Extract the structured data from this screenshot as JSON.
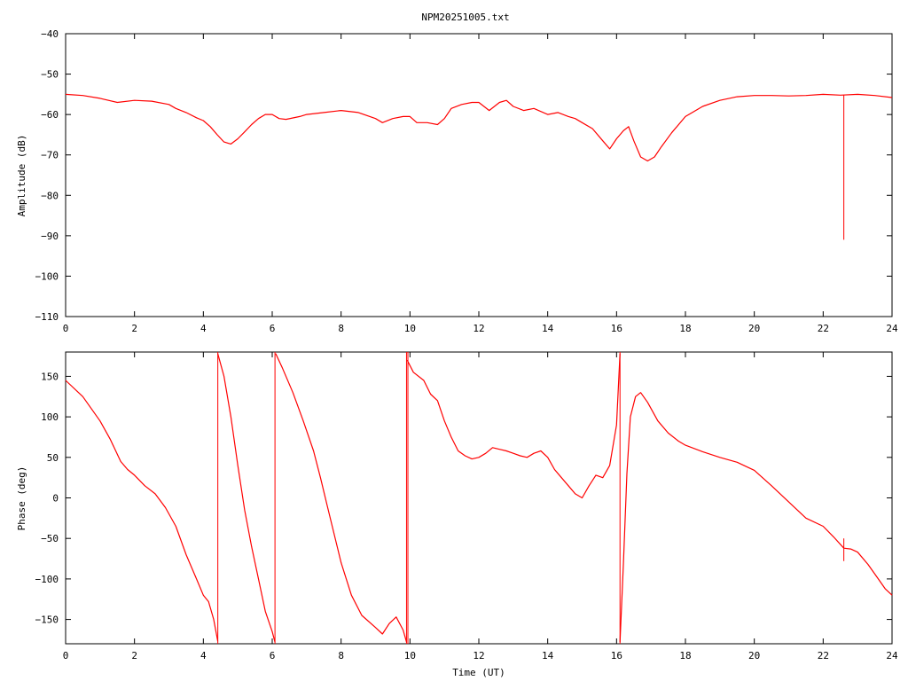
{
  "title": "NPM20251005.txt",
  "colors": {
    "trace": "#ff0000",
    "axes": "#000000",
    "background": "#ffffff"
  },
  "chart_data": [
    {
      "type": "line",
      "title": "NPM20251005.txt",
      "xlabel": "",
      "ylabel": "Amplitude (dB)",
      "xlim": [
        0,
        24
      ],
      "ylim": [
        -110,
        -40
      ],
      "xticks": [
        0,
        2,
        4,
        6,
        8,
        10,
        12,
        14,
        16,
        18,
        20,
        22,
        24
      ],
      "yticks": [
        -110,
        -100,
        -90,
        -80,
        -70,
        -60,
        -50,
        -40
      ],
      "xtick_labels": [
        "0",
        "2",
        "4",
        "6",
        "8",
        "10",
        "12",
        "14",
        "16",
        "18",
        "20",
        "22",
        "24"
      ],
      "ytick_labels": [
        "−110",
        "−100",
        "−90",
        "−80",
        "−70",
        "−60",
        "−50",
        "−40"
      ],
      "grid": false,
      "series": [
        {
          "color": "#ff0000",
          "x": [
            0,
            0.5,
            1.0,
            1.5,
            2.0,
            2.5,
            3.0,
            3.2,
            3.5,
            3.8,
            4.0,
            4.2,
            4.4,
            4.6,
            4.8,
            5.0,
            5.2,
            5.4,
            5.6,
            5.8,
            6.0,
            6.2,
            6.4,
            6.8,
            7.0,
            7.5,
            8.0,
            8.5,
            9.0,
            9.2,
            9.5,
            9.8,
            10.0,
            10.2,
            10.5,
            10.8,
            11.0,
            11.2,
            11.5,
            11.8,
            12.0,
            12.3,
            12.6,
            12.8,
            13.0,
            13.3,
            13.6,
            14.0,
            14.3,
            14.6,
            14.8,
            15.0,
            15.3,
            15.6,
            15.8,
            16.0,
            16.2,
            16.35,
            16.5,
            16.7,
            16.9,
            17.1,
            17.3,
            17.6,
            18.0,
            18.5,
            19.0,
            19.5,
            20.0,
            20.5,
            21.0,
            21.5,
            22.0,
            22.5,
            23.0,
            23.5,
            24.0
          ],
          "y": [
            -55,
            -55.3,
            -56,
            -57,
            -56.5,
            -56.7,
            -57.5,
            -58.5,
            -59.5,
            -60.8,
            -61.5,
            -63,
            -65,
            -66.8,
            -67.3,
            -66,
            -64.3,
            -62.5,
            -61,
            -60,
            -60,
            -61,
            -61.2,
            -60.5,
            -60,
            -59.5,
            -59,
            -59.5,
            -61,
            -62,
            -61,
            -60.5,
            -60.5,
            -62,
            -62,
            -62.5,
            -61,
            -58.5,
            -57.5,
            -57,
            -57,
            -59,
            -57,
            -56.5,
            -58,
            -59,
            -58.5,
            -60,
            -59.5,
            -60.5,
            -61,
            -62,
            -63.5,
            -66.5,
            -68.5,
            -66,
            -64,
            -63,
            -66.5,
            -70.5,
            -71.5,
            -70.5,
            -68,
            -64.5,
            -60.5,
            -58,
            -56.5,
            -55.6,
            -55.3,
            -55.3,
            -55.4,
            -55.3,
            -55,
            -55.2,
            -55,
            -55.3,
            -55.8
          ]
        }
      ],
      "spikes": [
        {
          "x": 22.6,
          "y0": -55.2,
          "y1": -91
        }
      ]
    },
    {
      "type": "line",
      "title": "",
      "xlabel": "Time (UT)",
      "ylabel": "Phase (deg)",
      "xlim": [
        0,
        24
      ],
      "ylim": [
        -180,
        180
      ],
      "xticks": [
        0,
        2,
        4,
        6,
        8,
        10,
        12,
        14,
        16,
        18,
        20,
        22,
        24
      ],
      "yticks": [
        -150,
        -100,
        -50,
        0,
        50,
        100,
        150
      ],
      "xtick_labels": [
        "0",
        "2",
        "4",
        "6",
        "8",
        "10",
        "12",
        "14",
        "16",
        "18",
        "20",
        "22",
        "24"
      ],
      "ytick_labels": [
        "−150",
        "−100",
        "−50",
        "0",
        "50",
        "100",
        "150"
      ],
      "grid": false,
      "series": [
        {
          "color": "#ff0000",
          "x": [
            0,
            0.5,
            1.0,
            1.3,
            1.6,
            1.8,
            2.0,
            2.3,
            2.6,
            2.9,
            3.2,
            3.5,
            3.8,
            4.0,
            4.15,
            4.3,
            4.42
          ],
          "y": [
            145,
            125,
            95,
            72,
            45,
            35,
            28,
            15,
            5,
            -12,
            -35,
            -70,
            -100,
            -120,
            -128,
            -150,
            -177
          ]
        },
        {
          "color": "#ff0000",
          "x": [
            4.42,
            4.6,
            4.8,
            5.0,
            5.2,
            5.4,
            5.6,
            5.8,
            6.0,
            6.08
          ],
          "y": [
            178,
            150,
            100,
            40,
            -15,
            -60,
            -100,
            -140,
            -165,
            -178
          ]
        },
        {
          "color": "#ff0000",
          "x": [
            6.1,
            6.3,
            6.6,
            6.9,
            7.2,
            7.4,
            7.6,
            7.8,
            8.0,
            8.3,
            8.6,
            9.0,
            9.2,
            9.4,
            9.6,
            9.8,
            9.9
          ],
          "y": [
            178,
            160,
            130,
            95,
            58,
            25,
            -10,
            -45,
            -80,
            -120,
            -145,
            -160,
            -168,
            -155,
            -147,
            -163,
            -178
          ]
        },
        {
          "color": "#ff0000",
          "x": [
            9.92,
            10.1,
            10.4,
            10.6,
            10.8,
            11.0,
            11.2,
            11.4,
            11.6,
            11.8,
            12.0,
            12.2,
            12.4,
            12.6,
            12.8,
            13.0,
            13.2,
            13.4,
            13.6,
            13.8,
            14.0,
            14.2,
            14.4,
            14.6,
            14.8,
            15.0,
            15.2,
            15.4,
            15.6,
            15.8,
            16.0,
            16.1
          ],
          "y": [
            170,
            155,
            145,
            128,
            120,
            95,
            75,
            58,
            52,
            48,
            50,
            55,
            62,
            60,
            58,
            55,
            52,
            50,
            55,
            58,
            50,
            35,
            25,
            15,
            5,
            0,
            15,
            28,
            25,
            40,
            90,
            178
          ]
        },
        {
          "color": "#ff0000",
          "x": [
            16.1,
            16.2,
            16.3,
            16.4,
            16.55,
            16.7,
            16.9,
            17.2,
            17.5,
            17.8,
            18.0,
            18.5,
            19.0,
            19.5,
            20.0,
            20.5,
            21.0,
            21.5,
            22.0,
            22.3,
            22.6,
            22.8,
            23.0,
            23.3,
            23.6,
            23.8,
            24.0
          ],
          "y": [
            -178,
            -80,
            30,
            100,
            125,
            130,
            118,
            95,
            80,
            70,
            65,
            57,
            50,
            44,
            34,
            15,
            -5,
            -25,
            -35,
            -48,
            -62,
            -63,
            -67,
            -82,
            -100,
            -112,
            -120
          ]
        }
      ],
      "spikes": [
        {
          "x": 4.42,
          "y0": -180,
          "y1": 180
        },
        {
          "x": 6.08,
          "y0": -180,
          "y1": 180
        },
        {
          "x": 9.9,
          "y0": -180,
          "y1": 180
        },
        {
          "x": 9.94,
          "y0": -180,
          "y1": 180
        },
        {
          "x": 16.1,
          "y0": -180,
          "y1": 180
        },
        {
          "x": 22.6,
          "y0": -50,
          "y1": -78
        }
      ]
    }
  ]
}
